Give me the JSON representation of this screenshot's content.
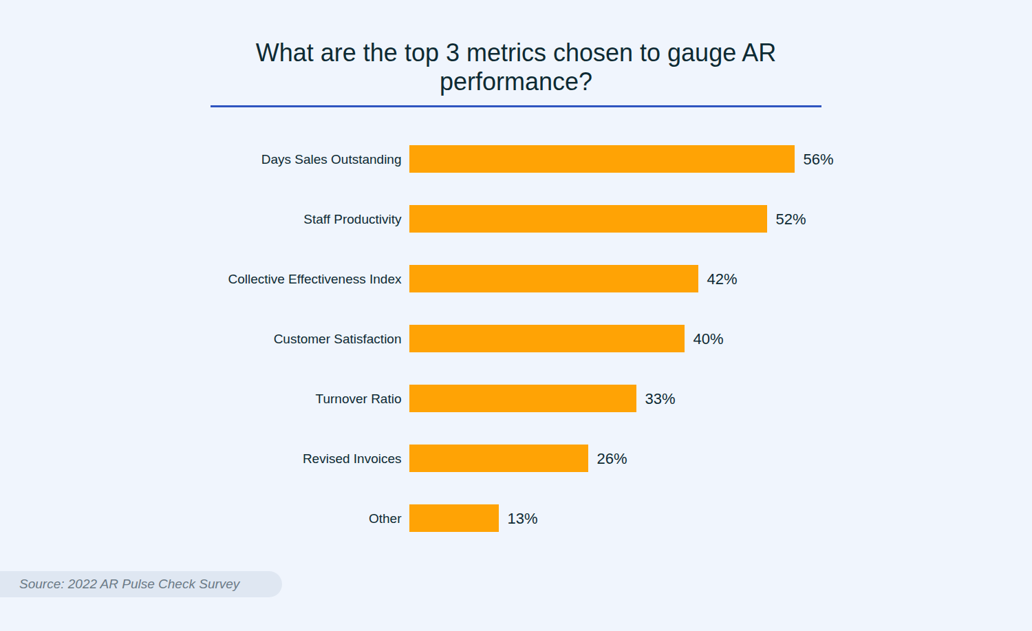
{
  "chart_data": {
    "type": "bar",
    "title": "What are the top 3 metrics chosen to gauge AR performance?",
    "orientation": "horizontal",
    "categories": [
      "Days Sales Outstanding",
      "Staff Productivity",
      "Collective Effectiveness Index",
      "Customer Satisfaction",
      "Turnover Ratio",
      "Revised Invoices",
      "Other"
    ],
    "values": [
      56,
      52,
      42,
      40,
      33,
      26,
      13
    ],
    "value_labels": [
      "56%",
      "52%",
      "42%",
      "40%",
      "33%",
      "26%",
      "13%"
    ],
    "color": "#ffa305",
    "xlim": [
      0,
      56
    ],
    "grid": false,
    "data_labels": true,
    "tick_labels": "y",
    "source": "Source: 2022 AR Pulse Check Survey"
  }
}
